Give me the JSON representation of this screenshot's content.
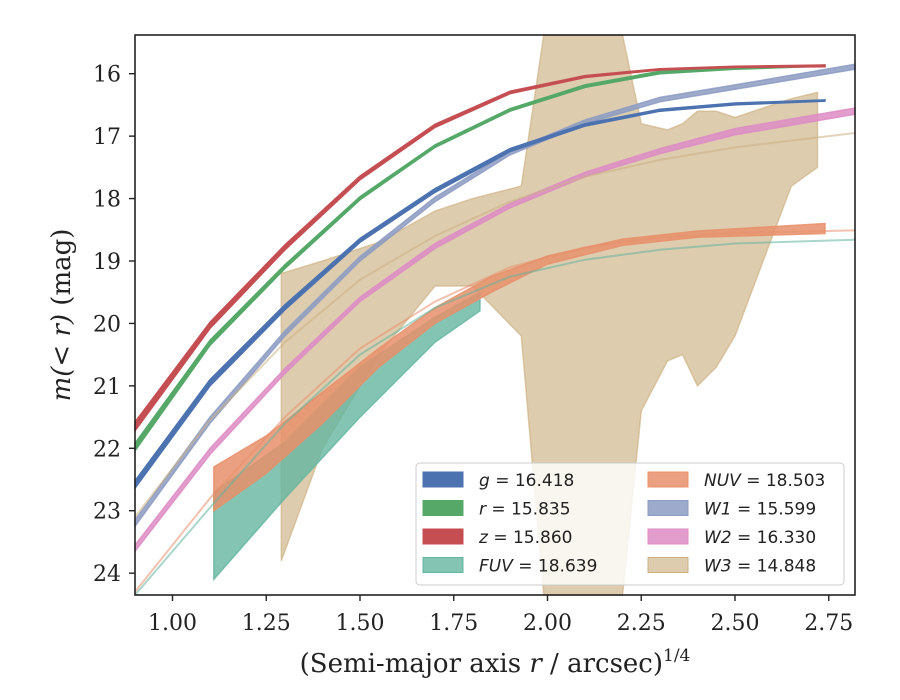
{
  "chart_data": {
    "type": "line",
    "title": "",
    "xlabel_main": "(Semi-major axis ",
    "xlabel_var": "r",
    "xlabel_rest": " / arcsec)",
    "xlabel_sup": "1/4",
    "ylabel_main": "m(< r)",
    "ylabel_unit": " (mag)",
    "xlim": [
      0.9,
      2.82
    ],
    "ylim": [
      15.38,
      24.35
    ],
    "y_inverted": true,
    "grid": false,
    "legend_position": "lower-right",
    "xticks": [
      1.0,
      1.25,
      1.5,
      1.75,
      2.0,
      2.25,
      2.5,
      2.75
    ],
    "xtick_labels": [
      "1.00",
      "1.25",
      "1.50",
      "1.75",
      "2.00",
      "2.25",
      "2.50",
      "2.75"
    ],
    "yticks": [
      16,
      17,
      18,
      19,
      20,
      21,
      22,
      23,
      24
    ],
    "ytick_labels": [
      "16",
      "17",
      "18",
      "19",
      "20",
      "21",
      "22",
      "23",
      "24"
    ],
    "series": [
      {
        "name": "g = 16.418",
        "var": "g",
        "value": "16.418",
        "color": "#4c72b0",
        "fill_opacity": 1.0,
        "x": [
          0.9,
          1.1,
          1.3,
          1.5,
          1.7,
          1.9,
          2.1,
          2.3,
          2.5,
          2.74
        ],
        "y_low": [
          22.64,
          21.0,
          19.78,
          18.7,
          17.9,
          17.25,
          16.84,
          16.6,
          16.5,
          16.44
        ],
        "y_high": [
          22.52,
          20.9,
          19.7,
          18.64,
          17.84,
          17.2,
          16.8,
          16.57,
          16.47,
          16.42
        ]
      },
      {
        "name": "r = 15.835",
        "var": "r",
        "value": "15.835",
        "color": "#55a868",
        "fill_opacity": 1.0,
        "x": [
          0.9,
          1.1,
          1.3,
          1.5,
          1.7,
          1.9,
          2.1,
          2.3,
          2.5,
          2.74
        ],
        "y_low": [
          22.04,
          20.35,
          19.12,
          18.02,
          17.18,
          16.6,
          16.22,
          16.0,
          15.93,
          15.88
        ],
        "y_high": [
          21.92,
          20.27,
          19.06,
          17.97,
          17.14,
          16.56,
          16.18,
          15.96,
          15.91,
          15.86
        ]
      },
      {
        "name": "z = 15.860",
        "var": "z",
        "value": "15.860",
        "color": "#c44e52",
        "fill_opacity": 1.0,
        "x": [
          0.9,
          1.1,
          1.3,
          1.5,
          1.7,
          1.9,
          2.1,
          2.3,
          2.5,
          2.74
        ],
        "y_low": [
          21.72,
          20.08,
          18.82,
          17.7,
          16.86,
          16.32,
          16.06,
          15.94,
          15.9,
          15.89
        ],
        "y_high": [
          21.58,
          19.98,
          18.74,
          17.64,
          16.81,
          16.28,
          16.03,
          15.92,
          15.88,
          15.86
        ]
      },
      {
        "name": "FUV = 18.639",
        "var": "FUV",
        "value": "18.639",
        "color": "#64b5a0",
        "fill_opacity": 0.8,
        "x": [
          1.11,
          1.3,
          1.5,
          1.7,
          1.82
        ],
        "y_low": [
          24.1,
          22.8,
          21.5,
          20.3,
          19.8
        ],
        "y_high": [
          22.7,
          21.9,
          20.7,
          19.9,
          19.5
        ]
      },
      {
        "name": "NUV = 18.503",
        "var": "NUV",
        "value": "18.503",
        "color": "#e8906b",
        "fill_opacity": 0.85,
        "x": [
          1.11,
          1.25,
          1.4,
          1.55,
          1.7,
          1.85,
          2.0,
          2.2,
          2.4,
          2.74
        ],
        "y_low": [
          23.0,
          22.4,
          21.6,
          20.7,
          20.0,
          19.5,
          19.05,
          18.75,
          18.62,
          18.56
        ],
        "y_high": [
          22.3,
          21.8,
          21.1,
          20.4,
          19.75,
          19.25,
          18.92,
          18.65,
          18.52,
          18.4
        ]
      },
      {
        "name": "W1 = 15.599",
        "var": "W1",
        "value": "15.599",
        "color": "#8c9bc2",
        "fill_opacity": 0.85,
        "x": [
          0.9,
          1.1,
          1.3,
          1.5,
          1.7,
          1.9,
          2.1,
          2.3,
          2.5,
          2.82
        ],
        "y_low": [
          23.25,
          21.6,
          20.2,
          19.0,
          18.05,
          17.3,
          16.8,
          16.45,
          16.25,
          15.93
        ],
        "y_high": [
          23.15,
          21.5,
          20.12,
          18.93,
          17.98,
          17.24,
          16.74,
          16.38,
          16.18,
          15.85
        ]
      },
      {
        "name": "W2 = 16.330",
        "var": "W2",
        "value": "16.330",
        "color": "#dd8cc4",
        "fill_opacity": 0.85,
        "x": [
          0.9,
          1.1,
          1.3,
          1.5,
          1.7,
          1.9,
          2.1,
          2.3,
          2.5,
          2.82
        ],
        "y_low": [
          23.65,
          22.1,
          20.8,
          19.65,
          18.8,
          18.15,
          17.65,
          17.28,
          16.98,
          16.65
        ],
        "y_high": [
          23.55,
          22.0,
          20.72,
          19.58,
          18.72,
          18.08,
          17.58,
          17.2,
          16.88,
          16.55
        ]
      },
      {
        "name": "W3 = 14.848",
        "var": "W3",
        "value": "14.848",
        "color": "#ccb083",
        "fill_opacity": 0.65,
        "x": [
          1.29,
          1.4,
          1.55,
          1.7,
          1.8,
          1.93,
          1.99,
          2.05,
          2.2,
          2.25,
          2.32,
          2.36,
          2.4,
          2.45,
          2.5,
          2.6,
          2.65,
          2.72
        ],
        "y_high": [
          19.2,
          19.0,
          18.7,
          18.2,
          18.0,
          17.8,
          15.38,
          15.38,
          15.38,
          16.8,
          16.9,
          16.8,
          16.6,
          16.6,
          16.7,
          16.5,
          16.4,
          16.3
        ],
        "y_low": [
          23.8,
          22.0,
          20.5,
          19.4,
          19.4,
          20.2,
          24.35,
          24.35,
          24.35,
          21.4,
          20.6,
          20.5,
          21.0,
          20.7,
          20.2,
          18.6,
          17.8,
          17.5
        ]
      }
    ],
    "model_curves": [
      {
        "name": "FUV model",
        "color": "#64b5a0",
        "x": [
          0.9,
          1.1,
          1.3,
          1.5,
          1.7,
          1.9,
          2.1,
          2.3,
          2.5,
          2.82
        ],
        "y": [
          24.35,
          22.95,
          21.6,
          20.5,
          19.75,
          19.25,
          18.98,
          18.82,
          18.72,
          18.66
        ]
      },
      {
        "name": "NUV model",
        "color": "#e8906b",
        "x": [
          0.9,
          1.1,
          1.3,
          1.5,
          1.7,
          1.9,
          2.1,
          2.3,
          2.5,
          2.82
        ],
        "y": [
          24.3,
          22.8,
          21.5,
          20.4,
          19.65,
          19.1,
          18.78,
          18.62,
          18.55,
          18.51
        ]
      },
      {
        "name": "W3 model",
        "color": "#ccb083",
        "x": [
          0.9,
          1.1,
          1.3,
          1.5,
          1.7,
          1.9,
          2.1,
          2.3,
          2.5,
          2.82
        ],
        "y": [
          23.1,
          21.55,
          20.3,
          19.3,
          18.6,
          18.05,
          17.65,
          17.38,
          17.18,
          16.95
        ]
      }
    ]
  }
}
